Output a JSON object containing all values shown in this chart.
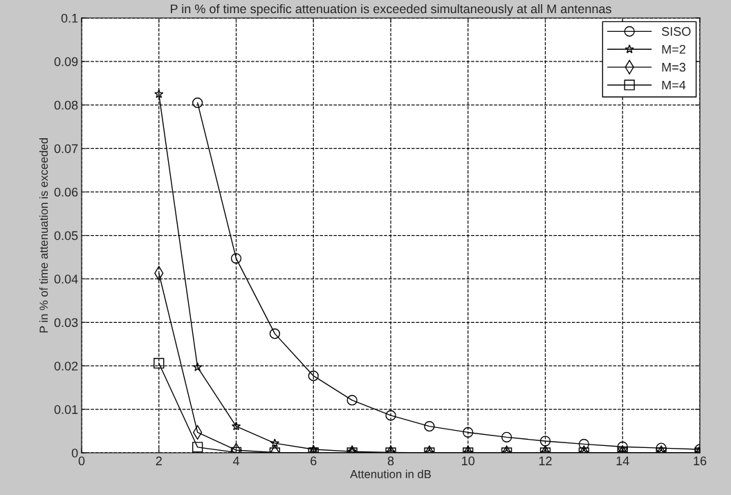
{
  "chart_data": {
    "type": "line",
    "title": "P in % of time specific attenuation is exceeded simultaneously at all M antennas",
    "xlabel": "Attenution in dB",
    "ylabel": "P in % of time attenuation is exceeded",
    "x": [
      2,
      3,
      4,
      5,
      6,
      7,
      8,
      9,
      10,
      11,
      12,
      13,
      14,
      15,
      16
    ],
    "series": [
      {
        "name": "SISO",
        "color": "#000000",
        "marker": "circle",
        "values": [
          null,
          0.0805,
          0.0447,
          0.0274,
          0.0177,
          0.0121,
          0.0086,
          0.0061,
          0.0047,
          0.0036,
          0.0027,
          0.002,
          0.0014,
          0.0011,
          0.0008
        ]
      },
      {
        "name": "M=2",
        "color": "#000000",
        "marker": "star",
        "values": [
          0.0825,
          0.0197,
          0.0061,
          0.0022,
          0.0008,
          0.0003,
          0.0001,
          0,
          0,
          0,
          0,
          0,
          0,
          0,
          0
        ]
      },
      {
        "name": "M=3",
        "color": "#000000",
        "marker": "diamond",
        "values": [
          0.0413,
          0.0047,
          0.0006,
          0.0001,
          0,
          0,
          0,
          0,
          0,
          0,
          0,
          0,
          0,
          0,
          0
        ]
      },
      {
        "name": "M=4",
        "color": "#000000",
        "marker": "square",
        "values": [
          0.0206,
          0.0013,
          0.0001,
          0,
          0,
          0,
          0,
          0,
          0,
          0,
          0,
          0,
          0,
          0,
          0
        ]
      }
    ],
    "xlim": [
      0,
      16
    ],
    "xticks": [
      0,
      2,
      4,
      6,
      8,
      10,
      12,
      14,
      16
    ],
    "ylim": [
      0,
      0.1
    ],
    "yticks": [
      0,
      0.01,
      0.02,
      0.03,
      0.04,
      0.05,
      0.06,
      0.07,
      0.08,
      0.09,
      0.1
    ],
    "grid": true,
    "legend": "top right",
    "line_style": "solid"
  }
}
